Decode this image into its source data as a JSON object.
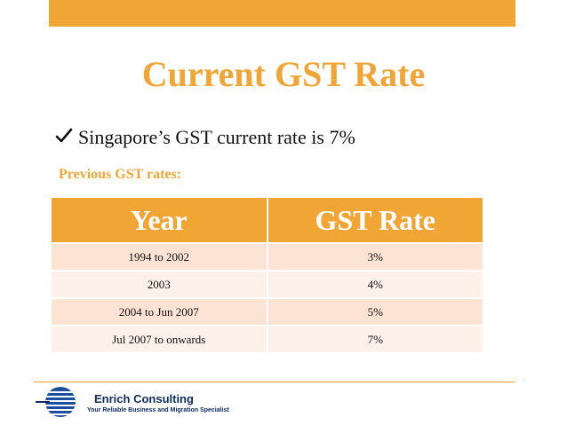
{
  "slide": {
    "title": "Current GST Rate",
    "bullet": {
      "icon": "check-icon",
      "text": "Singapore’s GST current rate is 7%"
    },
    "subheading": "Previous GST rates:"
  },
  "table": {
    "headers": [
      "Year",
      "GST Rate"
    ],
    "rows": [
      {
        "year": "1994 to 2002",
        "rate": "3%"
      },
      {
        "year": "2003",
        "rate": "4%"
      },
      {
        "year": "2004 to Jun 2007",
        "rate": "5%"
      },
      {
        "year": "Jul 2007 to onwards",
        "rate": "7%"
      }
    ]
  },
  "footer": {
    "brand": "Enrich Consulting",
    "tagline": "Your Reliable Business and Migration Specialist",
    "logo_icon": "globe-logo-icon"
  },
  "colors": {
    "accent": "#f0a534",
    "row_odd": "#fce3d4",
    "row_even": "#fdf1ea",
    "brand_navy": "#0f2d63"
  }
}
